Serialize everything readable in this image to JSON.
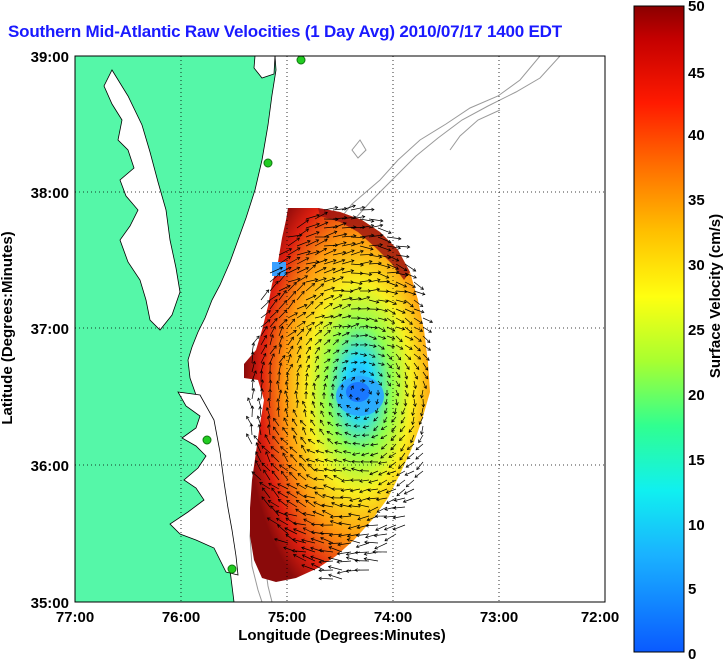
{
  "title": "Southern Mid-Atlantic Raw Velocities (1 Day Avg) 2010/07/17 1400 EDT",
  "axes": {
    "xlabel": "Longitude (Degrees:Minutes)",
    "ylabel": "Latitude (Degrees:Minutes)",
    "x_ticks": [
      "77:00",
      "76:00",
      "75:00",
      "74:00",
      "73:00",
      "72:00"
    ],
    "y_ticks": [
      "39:00",
      "38:00",
      "37:00",
      "36:00",
      "35:00"
    ],
    "x_range": [
      -77,
      -72
    ],
    "y_range": [
      35,
      39
    ]
  },
  "colorbar": {
    "label": "Surface Velocity (cm/s)",
    "ticks": [
      "50",
      "45",
      "40",
      "35",
      "30",
      "25",
      "20",
      "15",
      "10",
      "5",
      "0"
    ],
    "range": [
      0,
      50
    ]
  },
  "colors": {
    "land": "#55f7a8",
    "title": "#1a1aff",
    "coast": "#000000",
    "bathymetry": "#9a9a9a",
    "station": "#22cc22"
  }
}
